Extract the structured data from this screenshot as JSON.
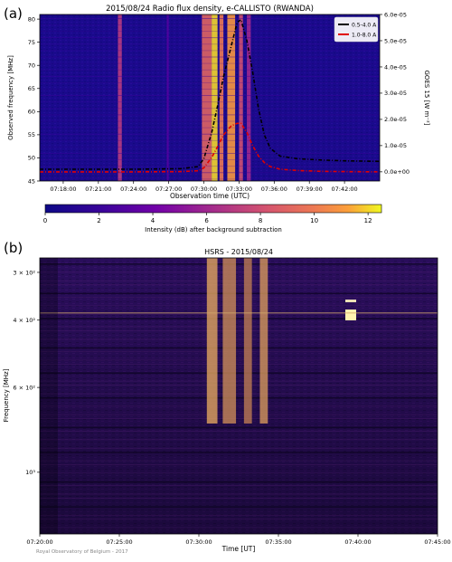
{
  "chart_data": [
    {
      "type": "heatmap",
      "panel_label": "(a)",
      "title": "2015/08/24  Radio flux density, e-CALLISTO (RWANDA)",
      "xlabel": "Observation time (UTC)",
      "ylabel": "Observed frequency [MHz]",
      "y2label": "GOES 15  [W m⁻²]",
      "x_ticks": [
        "07:18:00",
        "07:21:00",
        "07:24:00",
        "07:27:00",
        "07:30:00",
        "07:33:00",
        "07:36:00",
        "07:39:00",
        "07:42:00"
      ],
      "y_ticks": [
        "45",
        "50",
        "55",
        "60",
        "65",
        "70",
        "75",
        "80"
      ],
      "y2_ticks": [
        "0.0e+00",
        "1.0e-05",
        "2.0e-05",
        "3.0e-05",
        "4.0e-05",
        "5.0e-05",
        "6.0e-05"
      ],
      "xlim": [
        "07:16:00",
        "07:45:00"
      ],
      "ylim": [
        45,
        81
      ],
      "y2lim": [
        -3.5e-06,
        6e-05
      ],
      "colorbar": {
        "label": "Intensity (dB) after background subtraction",
        "ticks": [
          0,
          2,
          4,
          6,
          8,
          10,
          12
        ],
        "range": [
          0,
          12.5
        ],
        "colormap": "plasma"
      },
      "emission_bands": [
        {
          "start": "07:22:40",
          "end": "07:23:00",
          "intensity": 7
        },
        {
          "start": "07:26:50",
          "end": "07:27:00",
          "intensity": 3
        },
        {
          "start": "07:29:50",
          "end": "07:30:40",
          "intensity": 9
        },
        {
          "start": "07:30:40",
          "end": "07:31:10",
          "intensity": 12
        },
        {
          "start": "07:31:20",
          "end": "07:31:40",
          "intensity": 10
        },
        {
          "start": "07:32:00",
          "end": "07:32:40",
          "intensity": 11
        },
        {
          "start": "07:33:00",
          "end": "07:33:20",
          "intensity": 8
        },
        {
          "start": "07:33:40",
          "end": "07:34:00",
          "intensity": 6
        }
      ],
      "legend_position": "top-right",
      "series": [
        {
          "name": "0.5-4.0 A",
          "color": "#000000",
          "axis": "right",
          "x": [
            "07:16:00",
            "07:20:00",
            "07:24:00",
            "07:28:00",
            "07:29:30",
            "07:30:00",
            "07:30:40",
            "07:31:10",
            "07:31:40",
            "07:32:20",
            "07:32:50",
            "07:33:10",
            "07:33:40",
            "07:34:10",
            "07:34:40",
            "07:35:10",
            "07:35:40",
            "07:36:30",
            "07:38:00",
            "07:40:00",
            "07:42:00",
            "07:45:00"
          ],
          "y": [
            1e-06,
            1e-06,
            1e-06,
            1.2e-06,
            2e-06,
            5e-06,
            1.5e-05,
            2.5e-05,
            3.6e-05,
            4.8e-05,
            5.7e-05,
            5.8e-05,
            5e-05,
            3.8e-05,
            2.4e-05,
            1.4e-05,
            9e-06,
            6e-06,
            5e-06,
            4.5e-06,
            4.2e-06,
            4e-06
          ]
        },
        {
          "name": "1.0-8.0 A",
          "color": "#e00000",
          "axis": "right",
          "x": [
            "07:16:00",
            "07:20:00",
            "07:24:00",
            "07:28:00",
            "07:29:30",
            "07:30:00",
            "07:30:40",
            "07:31:10",
            "07:31:40",
            "07:32:20",
            "07:32:50",
            "07:33:10",
            "07:33:40",
            "07:34:10",
            "07:34:40",
            "07:35:10",
            "07:35:40",
            "07:36:30",
            "07:38:00",
            "07:40:00",
            "07:42:00",
            "07:45:00"
          ],
          "y": [
            0.0,
            0.0,
            0.0,
            1e-07,
            4e-07,
            1.5e-06,
            5.5e-06,
            9.5e-06,
            1.4e-05,
            1.75e-05,
            1.85e-05,
            1.85e-05,
            1.5e-05,
            1e-05,
            6e-06,
            3.5e-06,
            2e-06,
            1e-06,
            5e-07,
            2e-07,
            1e-07,
            0.0
          ]
        }
      ]
    },
    {
      "type": "heatmap",
      "panel_label": "(b)",
      "title": "HSRS - 2015/08/24",
      "xlabel": "Time [UT]",
      "ylabel": "Frequency [MHz]",
      "x_ticks": [
        "07:20:00",
        "07:25:00",
        "07:30:00",
        "07:35:00",
        "07:40:00",
        "07:45:00"
      ],
      "y_ticks": [
        "3 × 10²",
        "4 × 10²",
        "6 × 10²",
        "10³"
      ],
      "y_tick_values": [
        300,
        400,
        600,
        1000
      ],
      "xlim": [
        "07:20:00",
        "07:45:00"
      ],
      "ylim": [
        275,
        1450
      ],
      "yscale": "log",
      "yaxis_inverted": true,
      "colormap": "inferno",
      "emission_bands": [
        {
          "start": "07:30:30",
          "end": "07:31:10",
          "intensity": 0.9
        },
        {
          "start": "07:31:30",
          "end": "07:32:20",
          "intensity": 0.7
        },
        {
          "start": "07:32:50",
          "end": "07:33:20",
          "intensity": 0.6
        },
        {
          "start": "07:33:50",
          "end": "07:34:20",
          "intensity": 0.8
        }
      ],
      "credit": "Royal Observatory of Belgium - 2017"
    }
  ]
}
